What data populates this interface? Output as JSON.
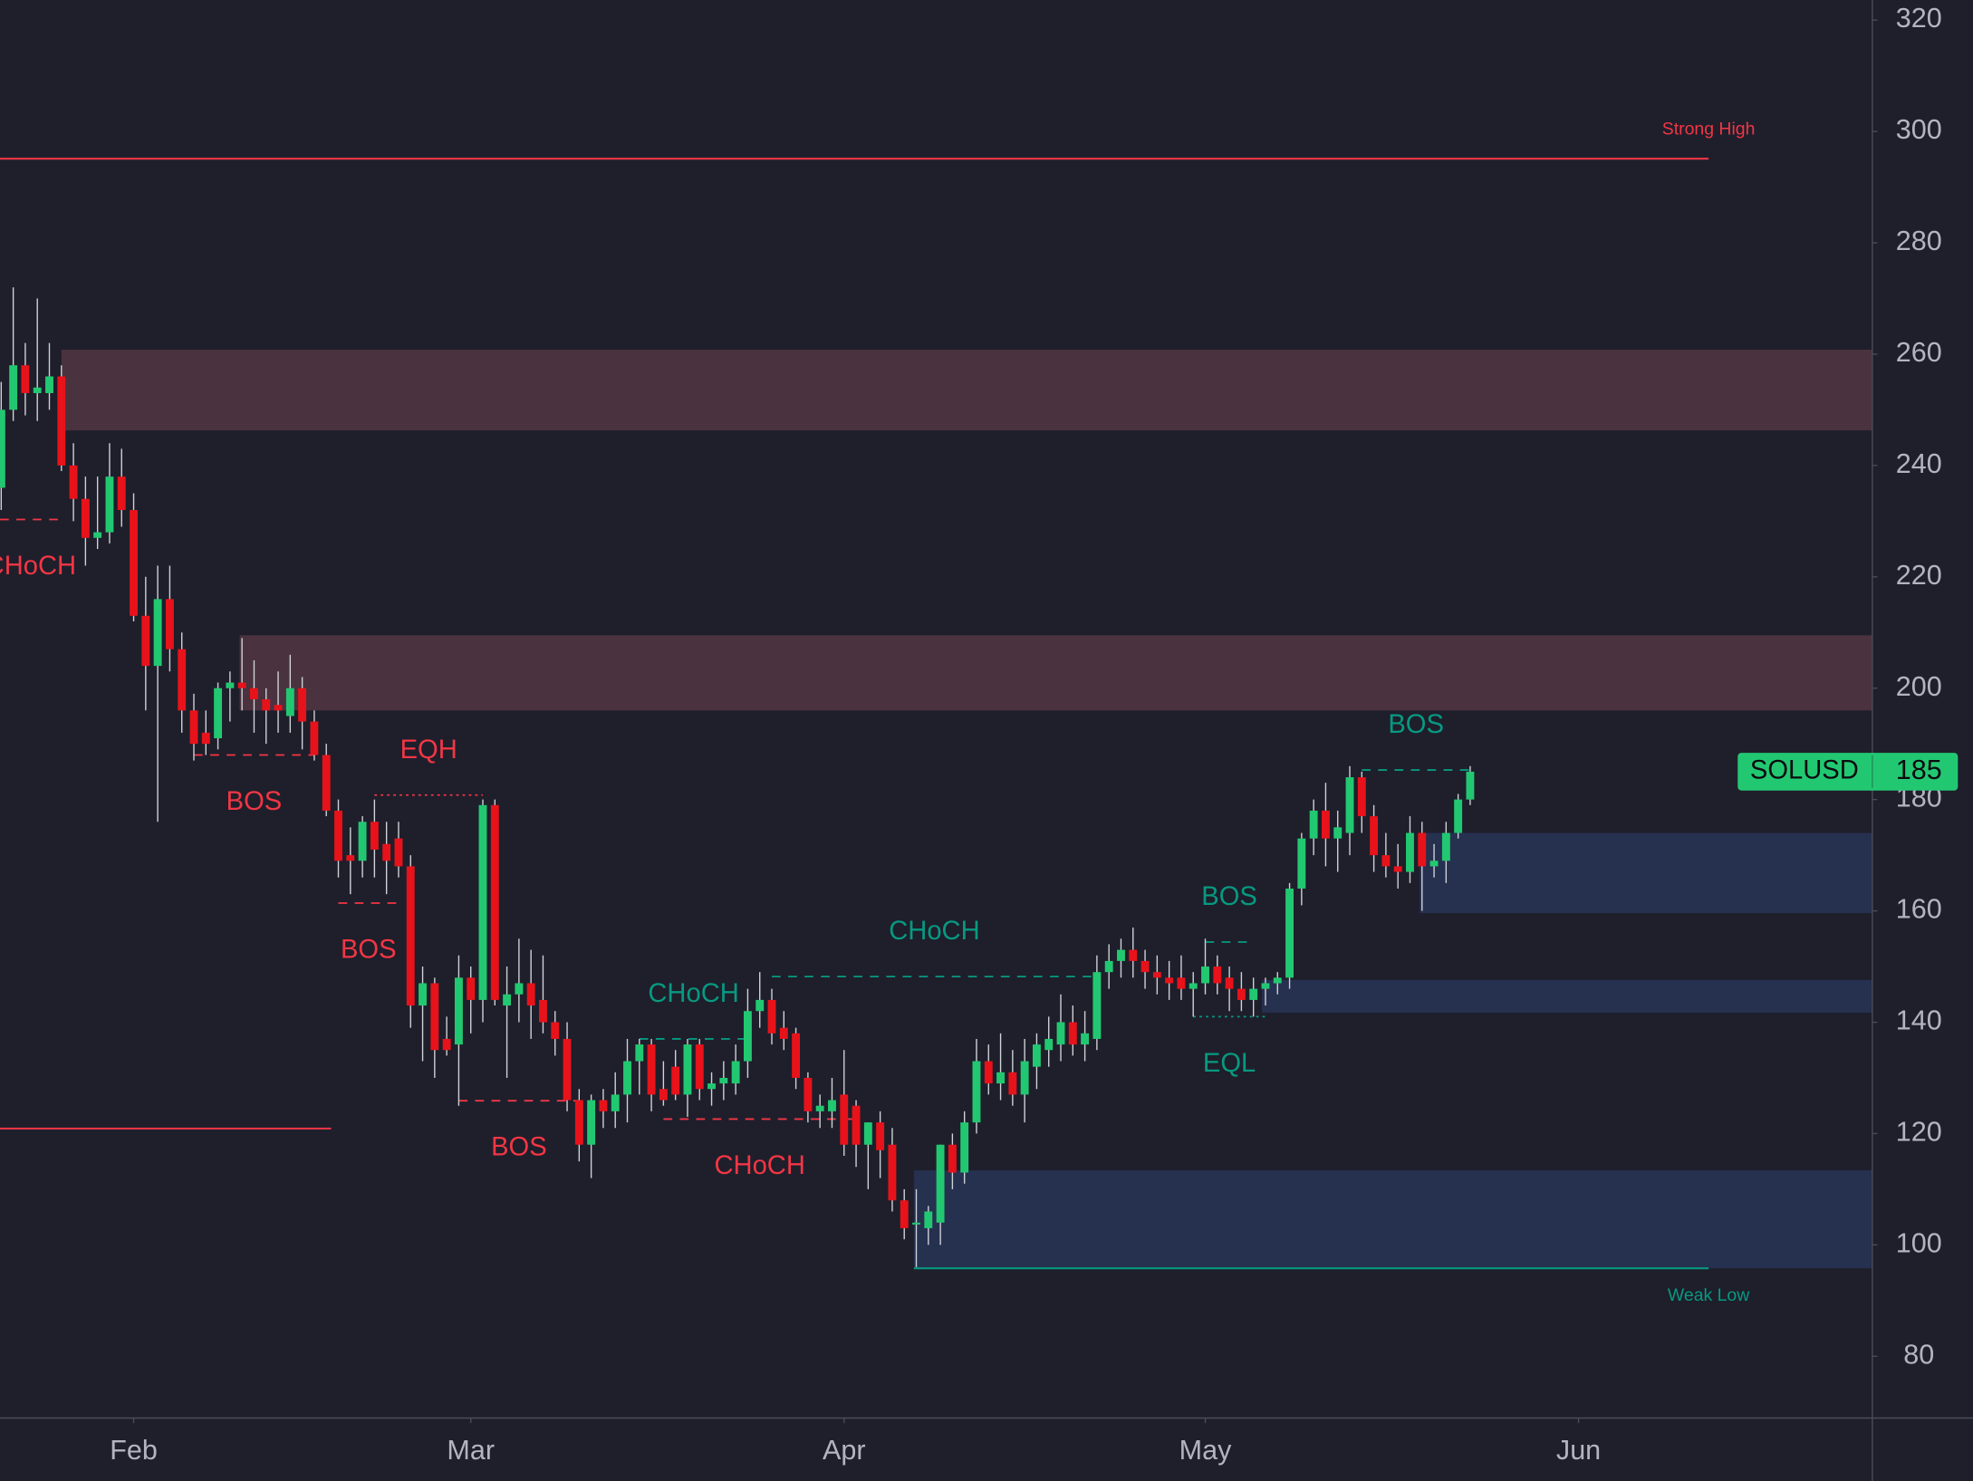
{
  "chart_data": {
    "type": "candlestick",
    "symbol": "SOLUSD",
    "up_color": "#22c871",
    "down_color": "#e8121a",
    "wick_color": "#cfd2d8",
    "x": [
      20,
      21,
      22,
      23,
      24,
      25,
      26,
      27,
      28,
      29,
      30,
      31,
      32,
      33,
      34,
      35,
      36,
      37,
      38,
      39,
      40,
      41,
      42,
      43,
      44,
      45,
      46,
      47,
      48,
      49,
      50,
      51,
      52,
      53,
      54,
      55,
      56,
      57,
      58,
      59,
      60,
      61,
      62,
      63,
      64,
      65,
      66,
      67,
      68,
      69,
      70,
      71,
      72,
      73,
      74,
      75,
      76,
      77,
      78,
      79,
      80,
      81,
      82,
      83,
      84,
      85,
      86,
      87,
      88,
      89,
      90,
      91,
      92,
      93,
      94,
      95,
      96,
      97,
      98,
      99,
      100,
      101,
      102,
      103,
      104,
      105,
      106,
      107,
      108,
      109,
      110,
      111,
      112,
      113,
      114,
      115,
      116,
      117,
      118,
      119,
      120,
      121,
      122,
      123,
      124,
      125,
      126,
      127,
      128,
      129,
      130,
      131,
      132,
      133,
      134,
      135,
      136,
      137,
      138,
      139,
      140,
      141,
      142
    ],
    "open": [
      236,
      250,
      258,
      253,
      253,
      256,
      240,
      234,
      227,
      228,
      238,
      232,
      213,
      204,
      216,
      207,
      196,
      192,
      191,
      200,
      201,
      200,
      198,
      197,
      195,
      200,
      194,
      188,
      178,
      170,
      169,
      176,
      172,
      173,
      168,
      143,
      147,
      137,
      136,
      148,
      144,
      179,
      143,
      145,
      147,
      144,
      140,
      137,
      126,
      118,
      126,
      124,
      127,
      133,
      136,
      128,
      132,
      127,
      136,
      128,
      129,
      129,
      133,
      142,
      144,
      139,
      138,
      130,
      124,
      124,
      127,
      125,
      118,
      122,
      118,
      108,
      104,
      103,
      104,
      118,
      113,
      122,
      133,
      129,
      131,
      127,
      132,
      135,
      136,
      140,
      136,
      137,
      149,
      151,
      153,
      151,
      149,
      148,
      148,
      146,
      147,
      150,
      148,
      146,
      144,
      146,
      147,
      148,
      164,
      173,
      178,
      173,
      174,
      184,
      177,
      170,
      168,
      167,
      174,
      168,
      169,
      174,
      180
    ],
    "high": [
      255,
      272,
      262,
      270,
      262,
      258,
      244,
      238,
      238,
      244,
      243,
      235,
      220,
      222,
      222,
      210,
      199,
      196,
      201,
      203,
      209,
      205,
      200,
      203,
      206,
      202,
      196,
      190,
      180,
      175,
      177,
      180,
      176,
      176,
      170,
      150,
      148,
      141,
      152,
      150,
      180,
      180,
      150,
      155,
      153,
      152,
      142,
      140,
      128,
      127,
      128,
      131,
      137,
      137,
      137,
      133,
      135,
      137,
      137,
      131,
      133,
      136,
      146,
      149,
      146,
      142,
      139,
      131,
      127,
      130,
      135,
      126,
      122,
      124,
      121,
      110,
      110,
      107,
      118,
      120,
      124,
      137,
      136,
      138,
      135,
      137,
      138,
      141,
      145,
      143,
      142,
      152,
      154,
      155,
      157,
      153,
      152,
      151,
      152,
      149,
      155,
      152,
      150,
      149,
      148,
      148,
      149,
      165,
      174,
      180,
      183,
      178,
      186,
      185,
      179,
      174,
      172,
      177,
      176,
      172,
      176,
      181,
      186
    ],
    "low": [
      232,
      248,
      249,
      248,
      250,
      239,
      230,
      222,
      225,
      226,
      229,
      212,
      196,
      176,
      203,
      192,
      187,
      188,
      189,
      194,
      196,
      192,
      190,
      192,
      192,
      189,
      187,
      177,
      166,
      163,
      166,
      166,
      163,
      166,
      139,
      133,
      130,
      134,
      125,
      138,
      140,
      143,
      130,
      140,
      137,
      138,
      134,
      124,
      115,
      112,
      121,
      121,
      122,
      127,
      124,
      125,
      126,
      123,
      126,
      125,
      126,
      127,
      130,
      139,
      136,
      135,
      128,
      122,
      121,
      121,
      116,
      114,
      110,
      112,
      106,
      101,
      96,
      100,
      100,
      110,
      111,
      120,
      127,
      126,
      125,
      122,
      128,
      132,
      133,
      134,
      133,
      135,
      146,
      148,
      148,
      146,
      145,
      144,
      144,
      141,
      145,
      145,
      142,
      142,
      141,
      143,
      145,
      146,
      161,
      170,
      168,
      167,
      170,
      174,
      167,
      166,
      164,
      165,
      160,
      166,
      165,
      173,
      179
    ],
    "close": [
      250,
      258,
      253,
      254,
      256,
      240,
      234,
      227,
      228,
      238,
      232,
      213,
      204,
      216,
      207,
      196,
      190,
      190,
      200,
      201,
      200,
      198,
      196,
      196,
      200,
      194,
      188,
      178,
      169,
      169,
      176,
      171,
      169,
      168,
      143,
      147,
      135,
      135,
      148,
      144,
      179,
      144,
      145,
      147,
      143,
      140,
      137,
      126,
      118,
      126,
      124,
      127,
      133,
      136,
      127,
      126,
      127,
      136,
      128,
      129,
      130,
      133,
      142,
      144,
      138,
      137,
      130,
      124,
      125,
      126,
      118,
      118,
      122,
      117,
      108,
      103,
      104,
      106,
      118,
      113,
      122,
      133,
      129,
      131,
      127,
      133,
      136,
      137,
      140,
      136,
      138,
      149,
      151,
      153,
      151,
      149,
      148,
      147,
      146,
      147,
      150,
      147,
      146,
      144,
      146,
      147,
      148,
      164,
      173,
      178,
      173,
      175,
      184,
      177,
      170,
      168,
      167,
      174,
      168,
      169,
      174,
      180,
      185
    ],
    "last_price": 185,
    "xlim": [
      19.9,
      175.4
    ],
    "xticks": [
      {
        "value": 31,
        "label": "Feb"
      },
      {
        "value": 59,
        "label": "Mar"
      },
      {
        "value": 90,
        "label": "Apr"
      },
      {
        "value": 120,
        "label": "May"
      },
      {
        "value": 151,
        "label": "Jun"
      }
    ],
    "ylim": [
      68.9,
      323.6
    ],
    "yticks": [
      80,
      100,
      120,
      140,
      160,
      180,
      200,
      220,
      240,
      260,
      280,
      300,
      320
    ],
    "zones": [
      {
        "top": 260.8,
        "bottom": 246.3,
        "start": 25,
        "color": "#4a323f"
      },
      {
        "top": 209.5,
        "bottom": 196,
        "start": 39.8,
        "color": "#4a323f"
      },
      {
        "top": 174,
        "bottom": 159.6,
        "start": 137.8,
        "color": "#26304f"
      },
      {
        "top": 147.6,
        "bottom": 141.7,
        "start": 124.7,
        "color": "#26304f"
      },
      {
        "top": 113.4,
        "bottom": 95.8,
        "start": 95.8,
        "color": "#26304f"
      }
    ],
    "levels": [
      {
        "name": "Strong High",
        "price": 295.1,
        "start": 19.9,
        "end": 161.8,
        "color": "#f23645",
        "position": "above"
      },
      {
        "name": "Weak Low",
        "price": 95.8,
        "start": 95.8,
        "end": 161.8,
        "color": "#089981",
        "position": "below"
      },
      {
        "price": 120.9,
        "start": 19.9,
        "end": 47.4,
        "color": "#f23645"
      }
    ],
    "structures": [
      {
        "label": "CHoCH",
        "price": 230.3,
        "start": 19.9,
        "end": 25,
        "color": "#f23645",
        "style": "dashed",
        "position": "below"
      },
      {
        "label": "BOS",
        "price": 188,
        "start": 36,
        "end": 46,
        "color": "#f23645",
        "style": "dashed",
        "position": "below"
      },
      {
        "label": "EQH",
        "price": 180.8,
        "start": 51,
        "end": 60,
        "color": "#f23645",
        "style": "dotted",
        "position": "above"
      },
      {
        "label": "BOS",
        "price": 161.4,
        "start": 48,
        "end": 53,
        "color": "#f23645",
        "style": "dashed",
        "position": "below"
      },
      {
        "label": "BOS",
        "price": 125.9,
        "start": 58,
        "end": 68,
        "color": "#f23645",
        "style": "dashed",
        "position": "below"
      },
      {
        "label": "CHoCH",
        "price": 137,
        "start": 73,
        "end": 82,
        "color": "#089981",
        "style": "dashed",
        "position": "above"
      },
      {
        "label": "CHoCH",
        "price": 122.6,
        "start": 75,
        "end": 91,
        "color": "#f23645",
        "style": "dashed",
        "position": "below"
      },
      {
        "label": "CHoCH",
        "price": 148.2,
        "start": 84,
        "end": 111,
        "color": "#089981",
        "style": "dashed",
        "position": "above"
      },
      {
        "label": "BOS",
        "price": 154.4,
        "start": 120,
        "end": 124,
        "color": "#089981",
        "style": "dashed",
        "position": "above"
      },
      {
        "label": "EQL",
        "price": 141,
        "start": 119,
        "end": 125,
        "color": "#089981",
        "style": "dotted",
        "position": "below"
      },
      {
        "label": "BOS",
        "price": 185.3,
        "start": 133,
        "end": 142,
        "color": "#089981",
        "style": "dashed",
        "position": "above"
      }
    ]
  }
}
